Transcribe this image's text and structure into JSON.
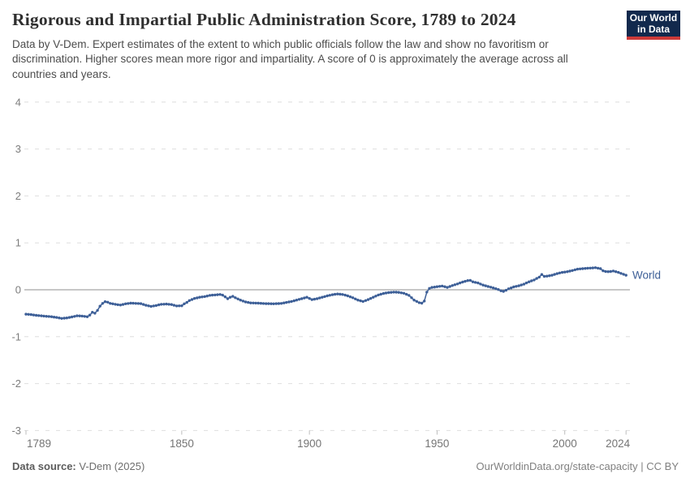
{
  "header": {
    "title": "Rigorous and Impartial Public Administration Score, 1789 to 2024",
    "subtitle": "Data by V-Dem. Expert estimates of the extent to which public officials follow the law and show no favoritism or discrimination. Higher scores mean more rigor and impartiality. A score of 0 is approximately the average across all countries and years."
  },
  "logo": {
    "line1": "Our World",
    "line2": "in Data",
    "bg_color": "#12294d",
    "accent_color": "#cd3a39"
  },
  "chart_data": {
    "type": "line",
    "title": "Rigorous and Impartial Public Administration Score, 1789 to 2024",
    "xlabel": "",
    "ylabel": "",
    "xlim": [
      1789,
      2024
    ],
    "ylim": [
      -3,
      4
    ],
    "x_ticks": [
      1789,
      1850,
      1900,
      1950,
      2000,
      2024
    ],
    "y_ticks": [
      4,
      3,
      2,
      1,
      0,
      -1,
      -2,
      -3
    ],
    "grid": "horizontal dashed gridlines, solid line at 0",
    "legend_position": "end-of-line label",
    "series": [
      {
        "name": "World",
        "color": "#3d5f97",
        "points": [
          [
            1789,
            -0.52
          ],
          [
            1791,
            -0.53
          ],
          [
            1793,
            -0.545
          ],
          [
            1795,
            -0.555
          ],
          [
            1797,
            -0.565
          ],
          [
            1799,
            -0.575
          ],
          [
            1801,
            -0.59
          ],
          [
            1803,
            -0.61
          ],
          [
            1805,
            -0.6
          ],
          [
            1807,
            -0.58
          ],
          [
            1809,
            -0.555
          ],
          [
            1811,
            -0.56
          ],
          [
            1813,
            -0.575
          ],
          [
            1814,
            -0.54
          ],
          [
            1815,
            -0.48
          ],
          [
            1816,
            -0.5
          ],
          [
            1817,
            -0.44
          ],
          [
            1818,
            -0.35
          ],
          [
            1819,
            -0.29
          ],
          [
            1820,
            -0.255
          ],
          [
            1821,
            -0.265
          ],
          [
            1822,
            -0.29
          ],
          [
            1824,
            -0.31
          ],
          [
            1826,
            -0.325
          ],
          [
            1828,
            -0.3
          ],
          [
            1830,
            -0.285
          ],
          [
            1832,
            -0.29
          ],
          [
            1834,
            -0.295
          ],
          [
            1836,
            -0.33
          ],
          [
            1838,
            -0.355
          ],
          [
            1840,
            -0.335
          ],
          [
            1842,
            -0.31
          ],
          [
            1844,
            -0.305
          ],
          [
            1846,
            -0.315
          ],
          [
            1848,
            -0.345
          ],
          [
            1850,
            -0.34
          ],
          [
            1851,
            -0.3
          ],
          [
            1852,
            -0.27
          ],
          [
            1853,
            -0.23
          ],
          [
            1855,
            -0.185
          ],
          [
            1857,
            -0.16
          ],
          [
            1859,
            -0.145
          ],
          [
            1861,
            -0.12
          ],
          [
            1863,
            -0.11
          ],
          [
            1865,
            -0.1
          ],
          [
            1866,
            -0.115
          ],
          [
            1867,
            -0.15
          ],
          [
            1868,
            -0.19
          ],
          [
            1869,
            -0.16
          ],
          [
            1870,
            -0.14
          ],
          [
            1871,
            -0.17
          ],
          [
            1873,
            -0.22
          ],
          [
            1875,
            -0.26
          ],
          [
            1877,
            -0.28
          ],
          [
            1880,
            -0.285
          ],
          [
            1883,
            -0.295
          ],
          [
            1886,
            -0.3
          ],
          [
            1889,
            -0.29
          ],
          [
            1891,
            -0.27
          ],
          [
            1893,
            -0.25
          ],
          [
            1895,
            -0.22
          ],
          [
            1897,
            -0.19
          ],
          [
            1899,
            -0.16
          ],
          [
            1901,
            -0.21
          ],
          [
            1903,
            -0.19
          ],
          [
            1905,
            -0.16
          ],
          [
            1907,
            -0.13
          ],
          [
            1909,
            -0.105
          ],
          [
            1911,
            -0.09
          ],
          [
            1913,
            -0.1
          ],
          [
            1915,
            -0.13
          ],
          [
            1917,
            -0.17
          ],
          [
            1919,
            -0.22
          ],
          [
            1921,
            -0.25
          ],
          [
            1923,
            -0.21
          ],
          [
            1925,
            -0.16
          ],
          [
            1927,
            -0.11
          ],
          [
            1929,
            -0.08
          ],
          [
            1931,
            -0.06
          ],
          [
            1933,
            -0.05
          ],
          [
            1935,
            -0.055
          ],
          [
            1937,
            -0.075
          ],
          [
            1939,
            -0.12
          ],
          [
            1941,
            -0.22
          ],
          [
            1943,
            -0.275
          ],
          [
            1944,
            -0.285
          ],
          [
            1945,
            -0.24
          ],
          [
            1946,
            -0.05
          ],
          [
            1947,
            0.03
          ],
          [
            1948,
            0.05
          ],
          [
            1950,
            0.065
          ],
          [
            1952,
            0.08
          ],
          [
            1954,
            0.05
          ],
          [
            1956,
            0.09
          ],
          [
            1958,
            0.125
          ],
          [
            1960,
            0.165
          ],
          [
            1962,
            0.195
          ],
          [
            1963,
            0.2
          ],
          [
            1964,
            0.17
          ],
          [
            1966,
            0.145
          ],
          [
            1968,
            0.1
          ],
          [
            1970,
            0.07
          ],
          [
            1972,
            0.04
          ],
          [
            1974,
            0.005
          ],
          [
            1975,
            -0.02
          ],
          [
            1976,
            -0.035
          ],
          [
            1977,
            -0.01
          ],
          [
            1978,
            0.02
          ],
          [
            1980,
            0.06
          ],
          [
            1982,
            0.085
          ],
          [
            1984,
            0.12
          ],
          [
            1986,
            0.17
          ],
          [
            1988,
            0.21
          ],
          [
            1990,
            0.27
          ],
          [
            1991,
            0.325
          ],
          [
            1992,
            0.285
          ],
          [
            1993,
            0.29
          ],
          [
            1995,
            0.31
          ],
          [
            1997,
            0.345
          ],
          [
            1999,
            0.37
          ],
          [
            2001,
            0.385
          ],
          [
            2003,
            0.41
          ],
          [
            2005,
            0.44
          ],
          [
            2007,
            0.45
          ],
          [
            2009,
            0.46
          ],
          [
            2011,
            0.465
          ],
          [
            2012,
            0.47
          ],
          [
            2013,
            0.46
          ],
          [
            2014,
            0.45
          ],
          [
            2015,
            0.405
          ],
          [
            2016,
            0.39
          ],
          [
            2017,
            0.385
          ],
          [
            2018,
            0.39
          ],
          [
            2019,
            0.4
          ],
          [
            2020,
            0.385
          ],
          [
            2021,
            0.37
          ],
          [
            2022,
            0.35
          ],
          [
            2023,
            0.33
          ],
          [
            2024,
            0.31
          ]
        ]
      }
    ]
  },
  "footer": {
    "data_source_label": "Data source:",
    "data_source_value": "V-Dem (2025)",
    "attribution": "OurWorldinData.org/state-capacity | CC BY"
  }
}
